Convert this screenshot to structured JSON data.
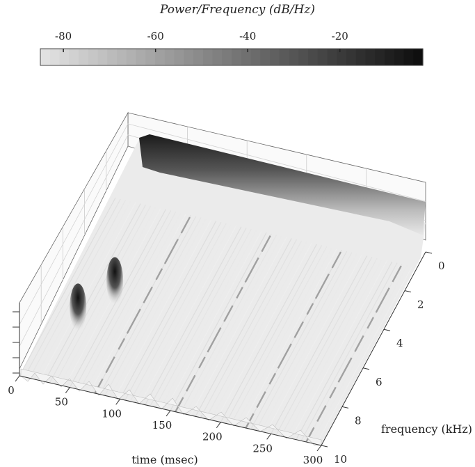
{
  "chart_data": {
    "type": "surface",
    "title": "",
    "colorbar": {
      "label": "Power/Frequency (dB/Hz)",
      "ticks": [
        -80,
        -60,
        -40,
        -20
      ],
      "range": [
        -85,
        -2
      ],
      "colormap": "gray-reversed"
    },
    "xlabel": "time (msec)",
    "ylabel": "frequency (kHz)",
    "x_ticks": [
      "0",
      "50",
      "100",
      "150",
      "200",
      "250",
      "300"
    ],
    "y_ticks": [
      "0",
      "2",
      "4",
      "6",
      "8",
      "10"
    ],
    "xlim": [
      0,
      300
    ],
    "ylim": [
      0,
      10
    ],
    "ridges": [
      {
        "kind": "fundamental",
        "freq_khz": 0.3
      },
      {
        "kind": "formant-peak",
        "time_ms": 45,
        "freq_khz": 5.2
      },
      {
        "kind": "formant-peak",
        "time_ms": 25,
        "freq_khz": 6.8
      },
      {
        "kind": "striation",
        "time_ms": 75
      },
      {
        "kind": "striation",
        "time_ms": 155
      },
      {
        "kind": "striation",
        "time_ms": 225
      },
      {
        "kind": "striation",
        "time_ms": 285
      }
    ]
  }
}
